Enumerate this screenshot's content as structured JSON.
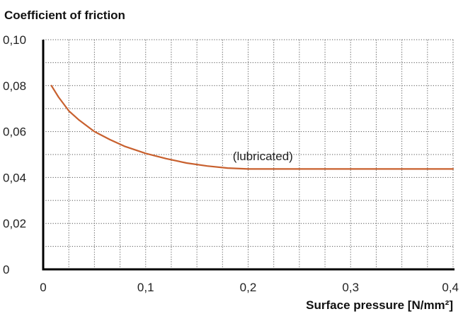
{
  "chart_data": {
    "type": "line",
    "ylabel": "Coefficient of friction",
    "xlabel": "Surface pressure [N/mm²]",
    "xlim": [
      0,
      0.4
    ],
    "ylim": [
      0,
      0.1
    ],
    "x_ticks": [
      {
        "value": 0,
        "label": "0"
      },
      {
        "value": 0.1,
        "label": "0,1"
      },
      {
        "value": 0.2,
        "label": "0,2"
      },
      {
        "value": 0.3,
        "label": "0,3"
      },
      {
        "value": 0.4,
        "label": "0,4"
      }
    ],
    "y_ticks": [
      {
        "value": 0,
        "label": "0"
      },
      {
        "value": 0.02,
        "label": "0,02"
      },
      {
        "value": 0.04,
        "label": "0,04"
      },
      {
        "value": 0.06,
        "label": "0,06"
      },
      {
        "value": 0.08,
        "label": "0,08"
      },
      {
        "value": 0.1,
        "label": "0,10"
      }
    ],
    "grid": true,
    "grid_x_step": 0.025,
    "grid_y_step": 0.01,
    "series": [
      {
        "color": "#c8602e",
        "points": [
          [
            0.008,
            0.08
          ],
          [
            0.015,
            0.075
          ],
          [
            0.025,
            0.069
          ],
          [
            0.035,
            0.065
          ],
          [
            0.05,
            0.06
          ],
          [
            0.065,
            0.0565
          ],
          [
            0.08,
            0.0535
          ],
          [
            0.1,
            0.0505
          ],
          [
            0.12,
            0.0482
          ],
          [
            0.14,
            0.0463
          ],
          [
            0.16,
            0.045
          ],
          [
            0.18,
            0.0441
          ],
          [
            0.2,
            0.0437
          ],
          [
            0.25,
            0.0437
          ],
          [
            0.3,
            0.0437
          ],
          [
            0.35,
            0.0437
          ],
          [
            0.4,
            0.0437
          ]
        ]
      }
    ],
    "annotations": [
      {
        "text": "(lubricated)",
        "x": 0.185,
        "y": 0.0475
      }
    ]
  }
}
